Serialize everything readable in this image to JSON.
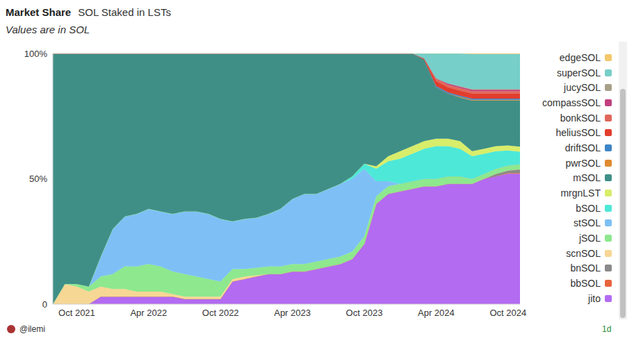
{
  "chart_data": {
    "type": "area",
    "title": "Market Share",
    "subtitle": "SOL Staked in LSTs",
    "note": "Values are in SOL",
    "author": "@ilemi",
    "footnote": "1d",
    "stacked": true,
    "grid": false,
    "legend": "right",
    "categories": [
      null,
      null,
      "Oct 2021",
      null,
      null,
      null,
      null,
      null,
      "Apr 2022",
      null,
      null,
      null,
      null,
      null,
      "Oct 2022",
      null,
      null,
      null,
      null,
      null,
      "Apr 2023",
      null,
      null,
      null,
      null,
      null,
      "Oct 2023",
      null,
      null,
      null,
      null,
      null,
      "Apr 2024",
      null,
      null,
      null,
      null,
      null,
      "Oct 2024",
      null
    ],
    "ylim": [
      0,
      100
    ],
    "yticks": [
      0,
      {
        "value": 50,
        "label": "50%"
      },
      {
        "value": 100,
        "label": "100%"
      }
    ],
    "series": [
      {
        "name": "jito",
        "color": "#b36bf2",
        "values": [
          0,
          0,
          0,
          0,
          3,
          3,
          3,
          3,
          3,
          3,
          3,
          2,
          2,
          2,
          2,
          9,
          10,
          11,
          12,
          12,
          13,
          13,
          14,
          15,
          16,
          18,
          24,
          40,
          44,
          45,
          46,
          47,
          47,
          48,
          48,
          48,
          50,
          51,
          52,
          52
        ]
      },
      {
        "name": "bbSOL",
        "color": "#e8643c",
        "values": [
          0,
          0,
          0,
          0,
          0,
          0,
          0,
          0,
          0,
          0,
          0,
          0,
          0,
          0,
          0,
          0,
          0,
          0,
          0,
          0,
          0,
          0,
          0,
          0,
          0,
          0,
          0,
          0,
          0,
          0,
          0,
          0,
          0,
          0,
          0,
          0,
          0,
          0,
          0.3,
          0.3
        ]
      },
      {
        "name": "bnSOL",
        "color": "#8a8a8a",
        "values": [
          0,
          0,
          0,
          0,
          0,
          0,
          0,
          0,
          0,
          0,
          0,
          0,
          0,
          0,
          0,
          0,
          0,
          0,
          0,
          0,
          0,
          0,
          0,
          0,
          0,
          0,
          0,
          0,
          0,
          0,
          0,
          0,
          0,
          0,
          0,
          0,
          0,
          1,
          1,
          1.5
        ]
      },
      {
        "name": "scnSOL",
        "color": "#f7d794",
        "values": [
          0,
          8,
          7,
          5,
          4,
          3,
          3,
          2,
          2,
          2,
          1,
          1,
          1,
          1,
          1,
          1,
          1,
          0.5,
          0,
          0,
          0,
          0,
          0,
          0,
          0,
          0,
          0,
          0,
          0,
          0,
          0,
          0,
          0,
          0,
          0,
          0,
          0,
          0,
          0,
          0
        ]
      },
      {
        "name": "jSOL",
        "color": "#8ee88e",
        "values": [
          0,
          0,
          1,
          2,
          4,
          6,
          9,
          10,
          11,
          10,
          9,
          9,
          8,
          7,
          6,
          4,
          3,
          3,
          3,
          3,
          3,
          3,
          3,
          3,
          3,
          3,
          3,
          3,
          3,
          3,
          3,
          3,
          3,
          3,
          3,
          2,
          2,
          2,
          2,
          2
        ]
      },
      {
        "name": "stSOL",
        "color": "#7ec0f5",
        "values": [
          0,
          0,
          0,
          0,
          8,
          18,
          20,
          21,
          22,
          22,
          23,
          25,
          26,
          26,
          25,
          19,
          20,
          20,
          21,
          23,
          26,
          28,
          27,
          28,
          29,
          29,
          27,
          6,
          2,
          0,
          0,
          0,
          0,
          0,
          0,
          0,
          0,
          0,
          0,
          0
        ]
      },
      {
        "name": "bSOL",
        "color": "#4de8d8",
        "values": [
          0,
          0,
          0,
          0,
          0,
          0,
          0,
          0,
          0,
          0,
          0,
          0,
          0,
          0,
          0,
          0,
          0,
          0,
          0,
          0,
          0,
          0,
          0,
          0,
          0,
          1,
          2,
          5,
          8,
          10,
          11,
          12,
          13,
          12,
          11,
          9,
          8,
          7,
          6,
          5
        ]
      },
      {
        "name": "mrgnLST",
        "color": "#d8ed6a",
        "values": [
          0,
          0,
          0,
          0,
          0,
          0,
          0,
          0,
          0,
          0,
          0,
          0,
          0,
          0,
          0,
          0,
          0,
          0,
          0,
          0,
          0,
          0,
          0,
          0,
          0,
          0,
          0,
          1,
          2,
          3,
          3,
          3,
          3,
          3,
          3,
          2,
          2,
          2,
          2,
          2
        ]
      },
      {
        "name": "mSOL",
        "color": "#3f8f87",
        "values": [
          100,
          92,
          92,
          93,
          81,
          70,
          65,
          64,
          62,
          63,
          64,
          63,
          63,
          64,
          66,
          67,
          66,
          65.5,
          64,
          62,
          58,
          56,
          56,
          54,
          52,
          49,
          44,
          45,
          41,
          39,
          37,
          32.5,
          20.5,
          18,
          17.4,
          20.2,
          19.2,
          18.2,
          17.9,
          18.4
        ]
      },
      {
        "name": "pwrSOL",
        "color": "#e08a2e",
        "values": [
          0,
          0,
          0,
          0,
          0,
          0,
          0,
          0,
          0,
          0,
          0,
          0,
          0,
          0,
          0,
          0,
          0,
          0,
          0,
          0,
          0,
          0,
          0,
          0,
          0,
          0,
          0,
          0,
          0,
          0,
          0,
          0,
          0,
          0,
          0.3,
          0.3,
          0.3,
          0.3,
          0.3,
          0.3
        ]
      },
      {
        "name": "driftSOL",
        "color": "#3d85c6",
        "values": [
          0,
          0,
          0,
          0,
          0,
          0,
          0,
          0,
          0,
          0,
          0,
          0,
          0,
          0,
          0,
          0,
          0,
          0,
          0,
          0,
          0,
          0,
          0,
          0,
          0,
          0,
          0,
          0,
          0,
          0,
          0,
          0,
          0.5,
          0.5,
          0.5,
          0.5,
          0.5,
          0.5,
          0.5,
          0.5
        ]
      },
      {
        "name": "heliusSOL",
        "color": "#e23d2d",
        "values": [
          0,
          0,
          0,
          0,
          0,
          0,
          0,
          0,
          0,
          0,
          0,
          0,
          0,
          0,
          0,
          0,
          0,
          0,
          0,
          0,
          0,
          0,
          0,
          0,
          0,
          0,
          0,
          0,
          0,
          0,
          0,
          0.5,
          2,
          2,
          2,
          2,
          2,
          2,
          2,
          2
        ]
      },
      {
        "name": "bonkSOL",
        "color": "#e0675b",
        "values": [
          0,
          0,
          0,
          0,
          0,
          0,
          0,
          0,
          0,
          0,
          0,
          0,
          0,
          0,
          0,
          0,
          0,
          0,
          0,
          0,
          0,
          0,
          0,
          0,
          0,
          0,
          0,
          0,
          0,
          0,
          0,
          0,
          1,
          1,
          1,
          1,
          1,
          1,
          1,
          1
        ]
      },
      {
        "name": "compassSOL",
        "color": "#c2407f",
        "values": [
          0,
          0,
          0,
          0,
          0,
          0,
          0,
          0,
          0,
          0,
          0,
          0,
          0,
          0,
          0,
          0,
          0,
          0,
          0,
          0,
          0,
          0,
          0,
          0,
          0,
          0,
          0,
          0,
          0,
          0,
          0,
          0,
          0,
          0.5,
          0.5,
          0.5,
          0.5,
          0.5,
          0.5,
          0.5
        ]
      },
      {
        "name": "jucySOL",
        "color": "#a8a089",
        "values": [
          0,
          0,
          0,
          0,
          0,
          0,
          0,
          0,
          0,
          0,
          0,
          0,
          0,
          0,
          0,
          0,
          0,
          0,
          0,
          0,
          0,
          0,
          0,
          0,
          0,
          0,
          0,
          0,
          0,
          0,
          0,
          0,
          0,
          0,
          0.3,
          0.3,
          0.3,
          0.3,
          0.3,
          0.3
        ]
      },
      {
        "name": "superSOL",
        "color": "#76cfc9",
        "values": [
          0,
          0,
          0,
          0,
          0,
          0,
          0,
          0,
          0,
          0,
          0,
          0,
          0,
          0,
          0,
          0,
          0,
          0,
          0,
          0,
          0,
          0,
          0,
          0,
          0,
          0,
          0,
          0,
          0,
          0,
          0,
          2,
          10,
          12,
          13,
          14,
          14,
          14,
          14,
          14
        ]
      },
      {
        "name": "edgeSOL",
        "color": "#f2c86b",
        "values": [
          0,
          0,
          0,
          0,
          0,
          0,
          0,
          0,
          0,
          0,
          0,
          0,
          0,
          0,
          0,
          0,
          0,
          0,
          0,
          0,
          0,
          0,
          0,
          0,
          0,
          0,
          0,
          0,
          0,
          0,
          0,
          0,
          0,
          0,
          0,
          0.2,
          0.2,
          0.2,
          0.2,
          0.2
        ]
      }
    ]
  }
}
